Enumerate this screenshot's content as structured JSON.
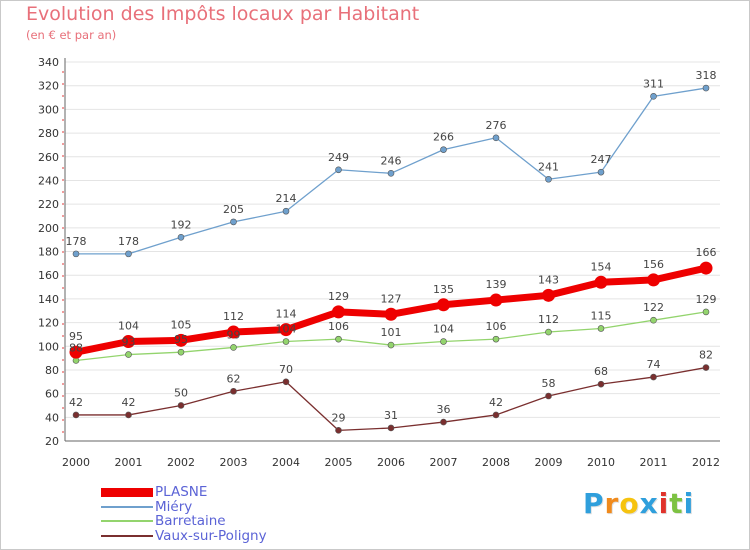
{
  "chart_data": {
    "type": "line",
    "title": "Evolution des Impôts locaux par Habitant",
    "subtitle": "(en € et par an)",
    "x": [
      "2000",
      "2001",
      "2002",
      "2003",
      "2004",
      "2005",
      "2006",
      "2007",
      "2008",
      "2009",
      "2010",
      "2011",
      "2012"
    ],
    "ylim": [
      20,
      340
    ],
    "yticks": [
      20,
      40,
      60,
      80,
      100,
      120,
      140,
      160,
      180,
      200,
      220,
      240,
      260,
      280,
      300,
      320,
      340
    ],
    "grid": "horizontal",
    "legend_position": "bottom-left",
    "series": [
      {
        "name": "Miéry",
        "color": "#6fa0cd",
        "values": [
          178,
          178,
          192,
          205,
          214,
          249,
          246,
          266,
          276,
          241,
          247,
          311,
          318
        ]
      },
      {
        "name": "Barretaine",
        "color": "#93d46d",
        "values": [
          88,
          93,
          95,
          99,
          104,
          106,
          101,
          104,
          106,
          112,
          115,
          122,
          129
        ]
      },
      {
        "name": "Vaux-sur-Poligny",
        "color": "#7a2f2f",
        "values": [
          42,
          42,
          50,
          62,
          70,
          29,
          31,
          36,
          42,
          58,
          68,
          74,
          82
        ]
      },
      {
        "name": "PLASNE",
        "color": "#ee0000",
        "values": [
          95,
          104,
          105,
          112,
          114,
          129,
          127,
          135,
          139,
          143,
          154,
          156,
          166
        ]
      }
    ],
    "data_labels": [
      {
        "series": "Miéry",
        "labels": [
          "178",
          "178",
          "192",
          "205",
          "214",
          "249",
          "246",
          "266",
          "276",
          "241",
          "247",
          "311",
          "318"
        ]
      },
      {
        "series": "Barretaine",
        "labels": [
          "88",
          "93",
          "95",
          "99",
          "104",
          "106",
          "101",
          "104",
          "106",
          "112",
          "115",
          "122",
          "129"
        ]
      },
      {
        "series": "Vaux-sur-Poligny",
        "labels": [
          "42",
          "42",
          "50",
          "62",
          "70",
          "29",
          "31",
          "36",
          "42",
          "58",
          "68",
          "74",
          "82"
        ]
      },
      {
        "series": "PLASNE",
        "labels": [
          "95",
          "104",
          "105",
          "112",
          "114",
          "129",
          "127",
          "135",
          "139",
          "143",
          "154",
          "156",
          "166"
        ]
      }
    ]
  },
  "legend": [
    {
      "label": "PLASNE",
      "color": "#ee0000"
    },
    {
      "label": "Miéry",
      "color": "#6fa0cd"
    },
    {
      "label": "Barretaine",
      "color": "#93d46d"
    },
    {
      "label": "Vaux-sur-Poligny",
      "color": "#7a2f2f"
    }
  ],
  "logo": {
    "letters": [
      "P",
      "r",
      "o",
      "x",
      "i",
      "t",
      "i"
    ],
    "colors": [
      "#2f9fdc",
      "#f08a1c",
      "#f6c30f",
      "#2f9fdc",
      "#e0322b",
      "#7dc242",
      "#2f9fdc"
    ]
  }
}
